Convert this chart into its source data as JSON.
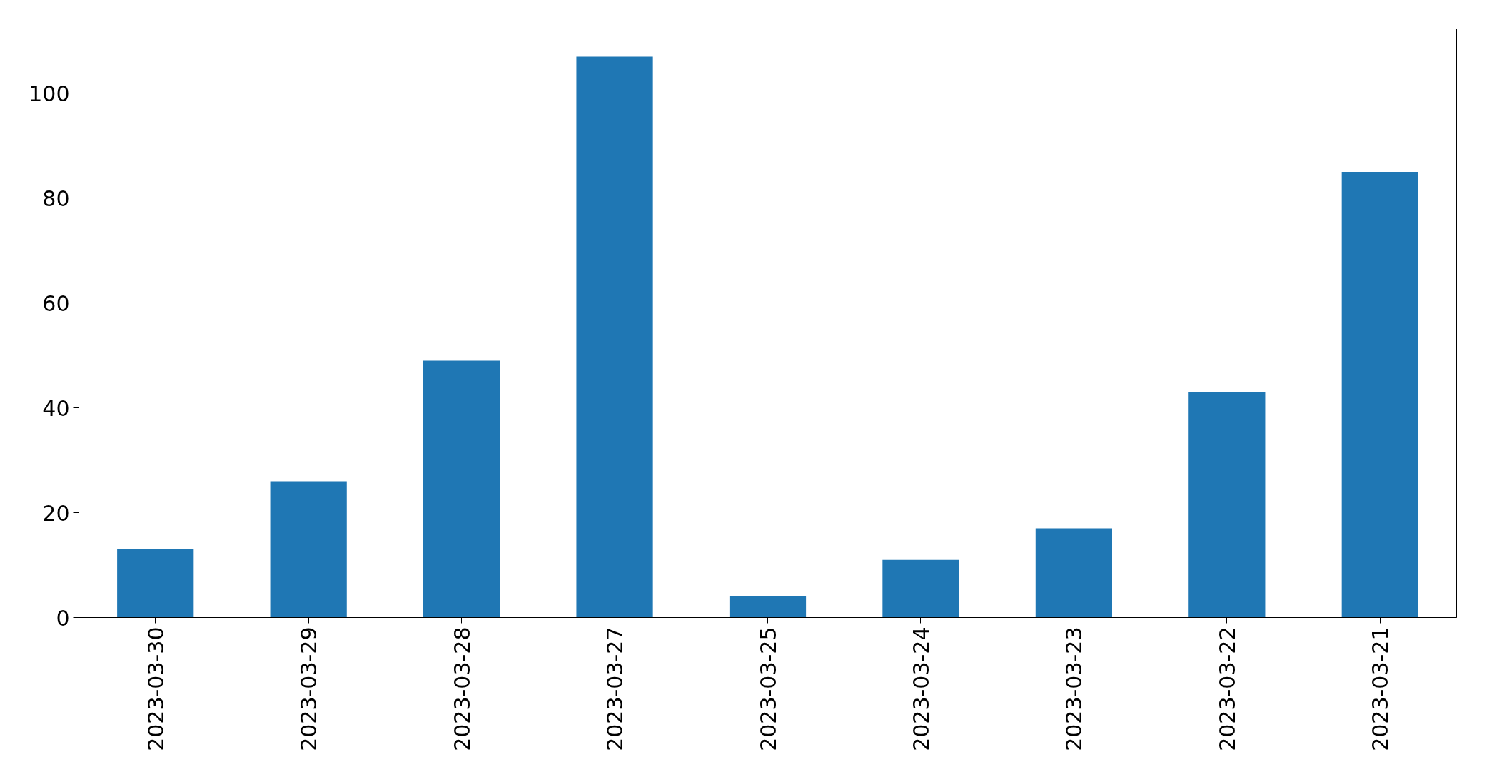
{
  "chart_data": {
    "type": "bar",
    "categories": [
      "2023-03-30",
      "2023-03-29",
      "2023-03-28",
      "2023-03-27",
      "2023-03-25",
      "2023-03-24",
      "2023-03-23",
      "2023-03-22",
      "2023-03-21"
    ],
    "values": [
      13,
      26,
      49,
      107,
      4,
      11,
      17,
      43,
      85
    ],
    "color": "#1f77b4",
    "ylim": [
      0,
      112.3
    ],
    "yticks": [
      0,
      20,
      40,
      60,
      80,
      100
    ],
    "grid": false
  }
}
